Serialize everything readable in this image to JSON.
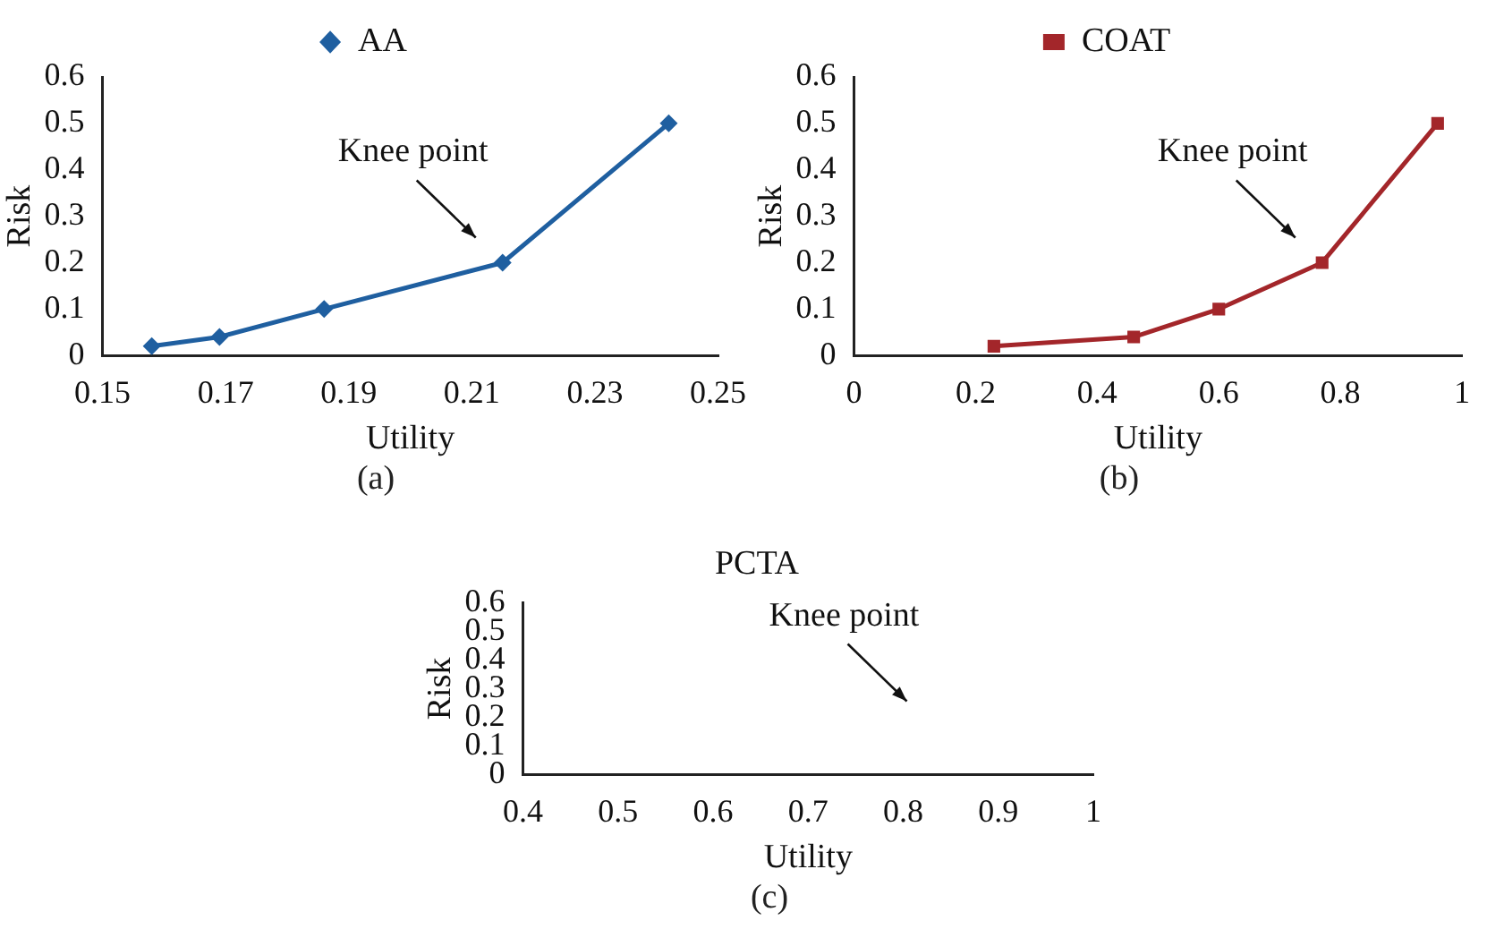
{
  "chart_data": [
    {
      "type": "line",
      "xlabel": "Utility",
      "ylabel": "Risk",
      "xlim": [
        0.15,
        0.25
      ],
      "xticks": [
        0.15,
        0.17,
        0.19,
        0.21,
        0.23,
        0.25
      ],
      "ylim": [
        0,
        0.6
      ],
      "yticks": [
        0,
        0.1,
        0.2,
        0.3,
        0.4,
        0.5,
        0.6
      ],
      "legend": "top",
      "marker": "diamond",
      "grid": false,
      "series": [
        {
          "name": "AA",
          "color": "#1f5fa0",
          "x": [
            0.158,
            0.169,
            0.186,
            0.215,
            0.242
          ],
          "values": [
            0.02,
            0.04,
            0.1,
            0.2,
            0.5
          ]
        }
      ],
      "annotations": [
        {
          "text": "Knee point",
          "x": 0.215,
          "y": 0.2
        },
        "(a)"
      ]
    },
    {
      "type": "line",
      "xlabel": "Utility",
      "ylabel": "Risk",
      "xlim": [
        0,
        1
      ],
      "xticks": [
        0,
        0.2,
        0.4,
        0.6,
        0.8,
        1
      ],
      "ylim": [
        0,
        0.6
      ],
      "yticks": [
        0,
        0.1,
        0.2,
        0.3,
        0.4,
        0.5,
        0.6
      ],
      "legend": "top",
      "marker": "square",
      "grid": false,
      "series": [
        {
          "name": "COAT",
          "color": "#a3262a",
          "x": [
            0.23,
            0.46,
            0.6,
            0.77,
            0.96
          ],
          "values": [
            0.02,
            0.04,
            0.1,
            0.2,
            0.5
          ]
        }
      ],
      "annotations": [
        {
          "text": "Knee point",
          "x": 0.77,
          "y": 0.2
        },
        "(b)"
      ]
    },
    {
      "type": "line",
      "title": "PCTA",
      "xlabel": "Utility",
      "ylabel": "Risk",
      "xlim": [
        0.4,
        1
      ],
      "xticks": [
        0.4,
        0.5,
        0.6,
        0.7,
        0.8,
        0.9,
        1
      ],
      "ylim": [
        0,
        0.6
      ],
      "yticks": [
        0,
        0.1,
        0.2,
        0.3,
        0.4,
        0.5,
        0.6
      ],
      "grid": false,
      "annotations": [
        "Knee point",
        "(c)"
      ]
    }
  ]
}
